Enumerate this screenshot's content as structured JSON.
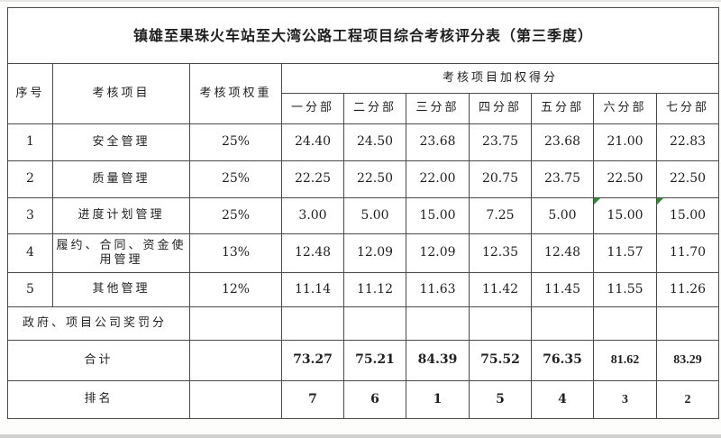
{
  "title": "镇雄至果珠火车站至大湾公路工程项目综合考核评分表（第三季度）",
  "colors": {
    "border": "#4a4a4a",
    "text": "#1f1f1f",
    "triangle_marker": "#2e8b2e",
    "page_edge": "#d0d0ce"
  },
  "header": {
    "col_index": "序号",
    "col_item": "考核项目",
    "col_weight": "考核项权重",
    "group": "考核项目加权得分",
    "sections": [
      "一分部",
      "二分部",
      "三分部",
      "四分部",
      "五分部",
      "六分部",
      "七分部"
    ]
  },
  "rows": [
    {
      "index": "1",
      "item": "安全管理",
      "weight": "25%",
      "scores": [
        "24.40",
        "24.50",
        "23.68",
        "23.75",
        "23.68",
        "21.00",
        "22.83"
      ]
    },
    {
      "index": "2",
      "item": "质量管理",
      "weight": "25%",
      "scores": [
        "22.25",
        "22.50",
        "22.00",
        "20.75",
        "23.75",
        "22.50",
        "22.50"
      ]
    },
    {
      "index": "3",
      "item": "进度计划管理",
      "weight": "25%",
      "scores": [
        "3.00",
        "5.00",
        "15.00",
        "7.25",
        "5.00",
        "15.00",
        "15.00"
      ],
      "triangles": [
        5,
        6
      ]
    },
    {
      "index": "4",
      "item": "履约、合同、资金使用管理",
      "weight": "13%",
      "scores": [
        "12.48",
        "12.09",
        "12.09",
        "12.35",
        "12.48",
        "11.57",
        "11.70"
      ]
    },
    {
      "index": "5",
      "item": "其他管理",
      "weight": "12%",
      "scores": [
        "11.14",
        "11.12",
        "11.63",
        "11.42",
        "11.45",
        "11.55",
        "11.26"
      ]
    }
  ],
  "summary_rows": [
    {
      "label": "政府、项目公司奖罚分",
      "align": "left",
      "bold": false,
      "scores": [
        "",
        "",
        "",
        "",
        "",
        "",
        ""
      ]
    },
    {
      "label": "合计",
      "align": "center",
      "bold": true,
      "alt_font_from": 5,
      "scores": [
        "73.27",
        "75.21",
        "84.39",
        "75.52",
        "76.35",
        "81.62",
        "83.29"
      ]
    },
    {
      "label": "排名",
      "align": "center",
      "bold": true,
      "alt_font_from": 5,
      "scores": [
        "7",
        "6",
        "1",
        "5",
        "4",
        "3",
        "2"
      ]
    }
  ]
}
